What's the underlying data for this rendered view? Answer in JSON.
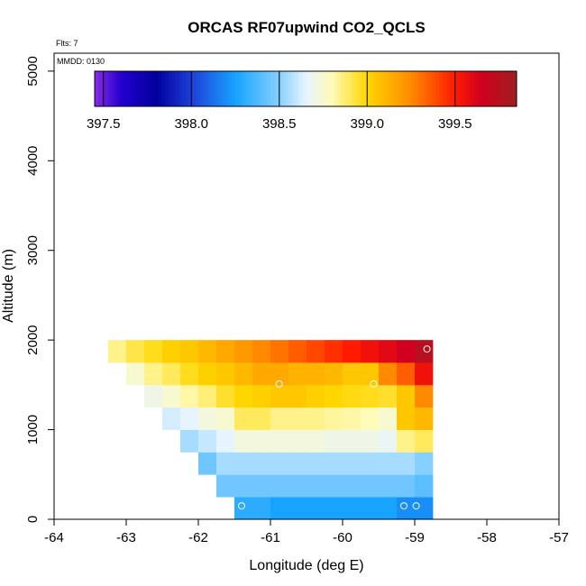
{
  "chart_data": {
    "type": "heatmap",
    "title": "ORCAS RF07upwind CO2_QCLS",
    "xlabel": "Longitude (deg E)",
    "ylabel": "Altitude (m)",
    "xlim": [
      -64,
      -57
    ],
    "ylim": [
      0,
      5200
    ],
    "xticks": [
      -64,
      -63,
      -62,
      -61,
      -60,
      -59,
      -58,
      -57
    ],
    "yticks": [
      0,
      1000,
      2000,
      3000,
      4000,
      5000
    ],
    "annotations": {
      "flts": "Flts: 7",
      "mmdd": "MMDD: 0130"
    },
    "colorbar": {
      "range": [
        397.45,
        399.85
      ],
      "ticks": [
        397.5,
        398.0,
        398.5,
        399.0,
        399.5
      ],
      "stops": [
        {
          "v": 397.45,
          "c": "#8a2be2"
        },
        {
          "v": 397.6,
          "c": "#2400d0"
        },
        {
          "v": 397.8,
          "c": "#00009a"
        },
        {
          "v": 398.0,
          "c": "#1e3fd8"
        },
        {
          "v": 398.25,
          "c": "#17a3ff"
        },
        {
          "v": 398.5,
          "c": "#86d0ff"
        },
        {
          "v": 398.65,
          "c": "#e6f4ff"
        },
        {
          "v": 398.8,
          "c": "#fffbb8"
        },
        {
          "v": 399.0,
          "c": "#ffd600"
        },
        {
          "v": 399.25,
          "c": "#ff8a00"
        },
        {
          "v": 399.5,
          "c": "#ff1a00"
        },
        {
          "v": 399.65,
          "c": "#d0001e"
        },
        {
          "v": 399.85,
          "c": "#a02020"
        }
      ]
    },
    "cell_size": {
      "dlon": 0.25,
      "dalt": 250
    },
    "rows": [
      {
        "alt": 125,
        "lon_start": -61.5,
        "values": [
          398.3,
          398.3,
          398.25,
          398.25,
          398.25,
          398.25,
          398.25,
          398.25,
          398.25,
          398.2,
          398.2
        ]
      },
      {
        "alt": 375,
        "lon_start": -61.75,
        "values": [
          398.45,
          398.45,
          398.45,
          398.45,
          398.45,
          398.45,
          398.45,
          398.45,
          398.45,
          398.45,
          398.45,
          398.4
        ]
      },
      {
        "alt": 625,
        "lon_start": -62.0,
        "values": [
          398.45,
          398.55,
          398.55,
          398.55,
          398.55,
          398.55,
          398.55,
          398.55,
          398.55,
          398.55,
          398.55,
          398.55,
          398.5
        ]
      },
      {
        "alt": 875,
        "lon_start": -62.25,
        "values": [
          398.55,
          398.6,
          398.65,
          398.72,
          398.72,
          398.72,
          398.72,
          398.72,
          398.7,
          398.7,
          398.7,
          398.68,
          398.85,
          398.9
        ]
      },
      {
        "alt": 1125,
        "lon_start": -62.5,
        "values": [
          398.62,
          398.65,
          398.72,
          398.75,
          398.9,
          398.9,
          398.85,
          398.85,
          398.85,
          398.83,
          398.82,
          398.8,
          398.75,
          399.05,
          399.1
        ]
      },
      {
        "alt": 1375,
        "lon_start": -62.75,
        "values": [
          398.7,
          398.75,
          398.82,
          398.87,
          398.95,
          399.0,
          399.02,
          399.05,
          399.05,
          399.02,
          399.0,
          398.98,
          398.97,
          398.95,
          399.05,
          399.25
        ]
      },
      {
        "alt": 1625,
        "lon_start": -63.0,
        "values": [
          398.75,
          398.85,
          398.9,
          398.97,
          399.02,
          399.05,
          399.1,
          399.15,
          399.15,
          399.12,
          399.12,
          399.1,
          399.05,
          399.05,
          399.25,
          399.35,
          399.55
        ]
      },
      {
        "alt": 1875,
        "lon_start": -63.25,
        "values": [
          398.85,
          398.92,
          398.97,
          399.02,
          399.05,
          399.1,
          399.15,
          399.2,
          399.25,
          399.3,
          399.35,
          399.4,
          399.45,
          399.5,
          399.55,
          399.6,
          399.65,
          399.75
        ]
      }
    ],
    "points": [
      {
        "lon": -61.4,
        "alt": 150
      },
      {
        "lon": -59.15,
        "alt": 150
      },
      {
        "lon": -58.98,
        "alt": 150
      },
      {
        "lon": -60.88,
        "alt": 1510
      },
      {
        "lon": -59.57,
        "alt": 1510
      },
      {
        "lon": -58.83,
        "alt": 1900
      }
    ]
  }
}
